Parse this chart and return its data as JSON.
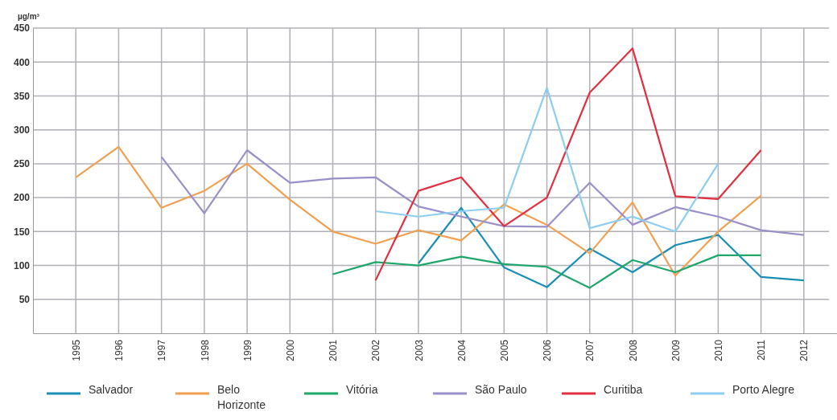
{
  "chart_data": {
    "type": "line",
    "ylabel": "µg/m³",
    "categories": [
      "1995",
      "1996",
      "1997",
      "1998",
      "1999",
      "2000",
      "2001",
      "2002",
      "2003",
      "2004",
      "2005",
      "2006",
      "2007",
      "2008",
      "2009",
      "2010",
      "2011",
      "2012"
    ],
    "ylim": [
      0,
      450
    ],
    "yticks": [
      50,
      100,
      150,
      200,
      250,
      300,
      350,
      400,
      450
    ],
    "grid": true,
    "legend": "bottom",
    "marker": "none",
    "line_style": "solid",
    "series": [
      {
        "name": "Salvador",
        "color": "#1a8fb5",
        "values": [
          null,
          null,
          null,
          null,
          null,
          null,
          null,
          null,
          103,
          185,
          97,
          68,
          125,
          90,
          130,
          145,
          83,
          78
        ]
      },
      {
        "name": "Belo Horizonte",
        "color": "#f0a050",
        "values": [
          230,
          275,
          185,
          210,
          250,
          197,
          150,
          132,
          152,
          137,
          190,
          160,
          118,
          193,
          85,
          150,
          203,
          null
        ]
      },
      {
        "name": "Vitória",
        "color": "#1fa66a",
        "values": [
          null,
          null,
          null,
          null,
          null,
          null,
          87,
          105,
          100,
          113,
          102,
          98,
          67,
          108,
          90,
          115,
          115,
          null
        ]
      },
      {
        "name": "São Paulo",
        "color": "#9a8fc8",
        "values": [
          null,
          null,
          260,
          177,
          270,
          222,
          228,
          230,
          187,
          172,
          158,
          157,
          222,
          160,
          186,
          172,
          152,
          145
        ]
      },
      {
        "name": "Curitiba",
        "color": "#e03040",
        "values": [
          null,
          null,
          null,
          null,
          null,
          null,
          null,
          78,
          210,
          230,
          158,
          200,
          355,
          420,
          202,
          198,
          270,
          null
        ]
      },
      {
        "name": "Porto Alegre",
        "color": "#8ccdf0",
        "values": [
          null,
          null,
          null,
          null,
          null,
          null,
          null,
          180,
          172,
          180,
          185,
          362,
          155,
          172,
          150,
          250,
          null,
          null
        ]
      }
    ]
  }
}
